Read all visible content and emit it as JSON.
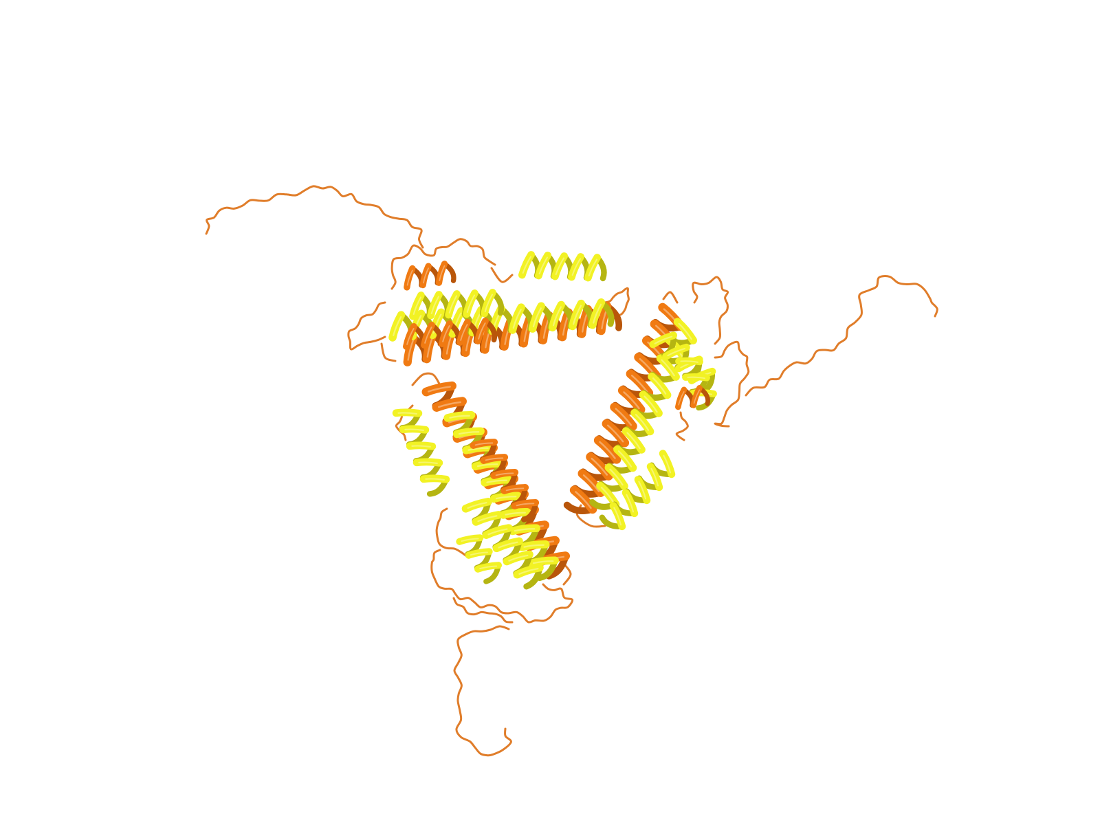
{
  "scene": {
    "kind": "protein-cartoon-render",
    "background_color": "#ffffff",
    "chain_colors": {
      "primary_helix": "#f07a12",
      "primary_helix_dark": "#b9560a",
      "secondary_helix": "#f2f224",
      "secondary_helix_dark": "#b5b512",
      "loop": "#e07d2a"
    },
    "assembly": "trimer",
    "subunit_count": 3
  }
}
